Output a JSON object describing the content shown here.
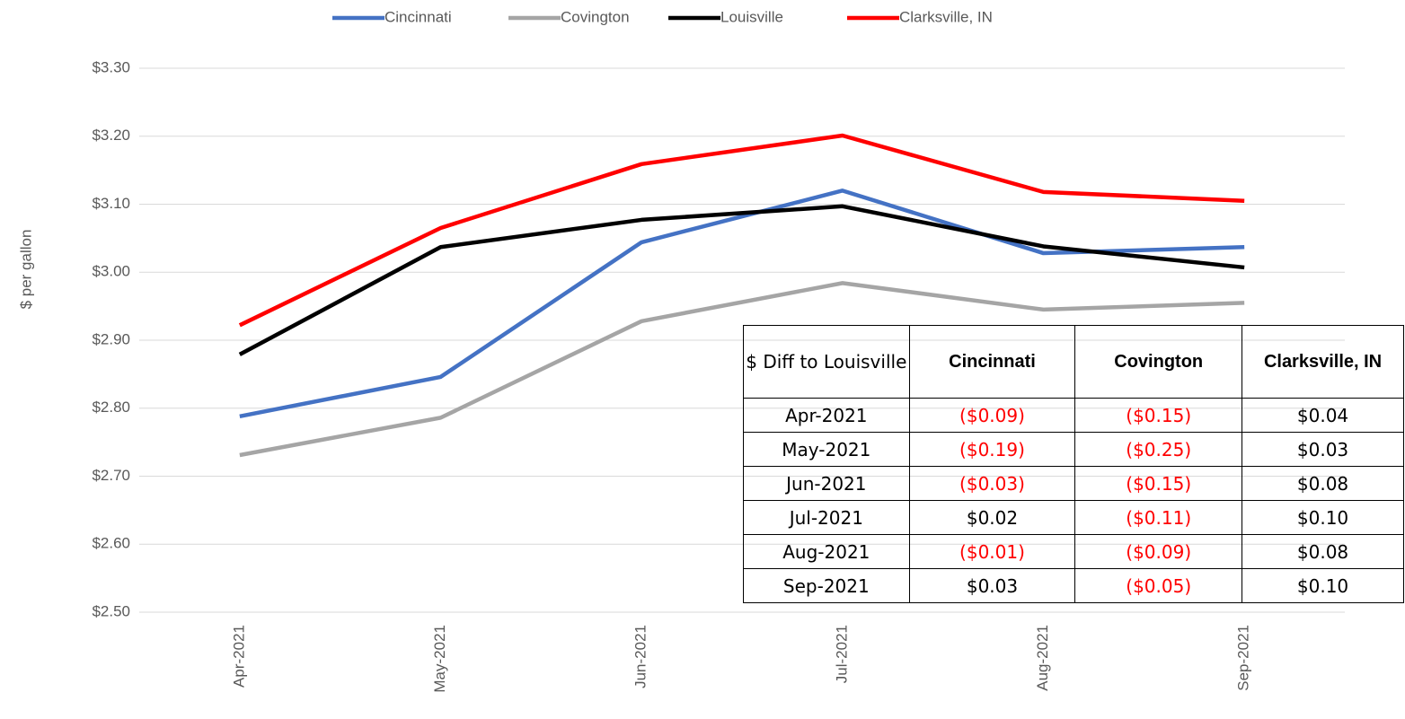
{
  "chart_data": {
    "type": "line",
    "y_label": "$ per gallon",
    "categories": [
      "Apr-2021",
      "May-2021",
      "Jun-2021",
      "Jul-2021",
      "Aug-2021",
      "Sep-2021"
    ],
    "series": [
      {
        "name": "Cincinnati",
        "color": "#4472c4",
        "values": [
          2.788,
          2.846,
          3.044,
          3.12,
          3.028,
          3.037
        ]
      },
      {
        "name": "Covington",
        "color": "#a5a5a5",
        "values": [
          2.731,
          2.786,
          2.928,
          2.984,
          2.945,
          2.955
        ]
      },
      {
        "name": "Louisville",
        "color": "#000000",
        "values": [
          2.879,
          3.037,
          3.077,
          3.097,
          3.038,
          3.007
        ]
      },
      {
        "name": "Clarksville, IN",
        "color": "#ff0000",
        "values": [
          2.922,
          3.065,
          3.159,
          3.201,
          3.118,
          3.105
        ]
      }
    ],
    "ylim": [
      2.5,
      3.3
    ],
    "yticks": [
      {
        "value": 2.5,
        "label": "$2.50"
      },
      {
        "value": 2.6,
        "label": "$2.60"
      },
      {
        "value": 2.7,
        "label": "$2.70"
      },
      {
        "value": 2.8,
        "label": "$2.80"
      },
      {
        "value": 2.9,
        "label": "$2.90"
      },
      {
        "value": 3.0,
        "label": "$3.00"
      },
      {
        "value": 3.1,
        "label": "$3.10"
      },
      {
        "value": 3.2,
        "label": "$3.20"
      },
      {
        "value": 3.3,
        "label": "$3.30"
      }
    ],
    "grid": true,
    "legend": "top"
  },
  "table": {
    "header": [
      "$ Diff to Louisville",
      "Cincinnati",
      "Covington",
      "Clarksville, IN"
    ],
    "rows": [
      [
        "Apr-2021",
        "($0.09)",
        "($0.15)",
        "$0.04"
      ],
      [
        "May-2021",
        "($0.19)",
        "($0.25)",
        "$0.03"
      ],
      [
        "Jun-2021",
        "($0.03)",
        "($0.15)",
        "$0.08"
      ],
      [
        "Jul-2021",
        "$0.02",
        "($0.11)",
        "$0.10"
      ],
      [
        "Aug-2021",
        "($0.01)",
        "($0.09)",
        "$0.08"
      ],
      [
        "Sep-2021",
        "$0.03",
        "($0.05)",
        "$0.10"
      ]
    ]
  }
}
